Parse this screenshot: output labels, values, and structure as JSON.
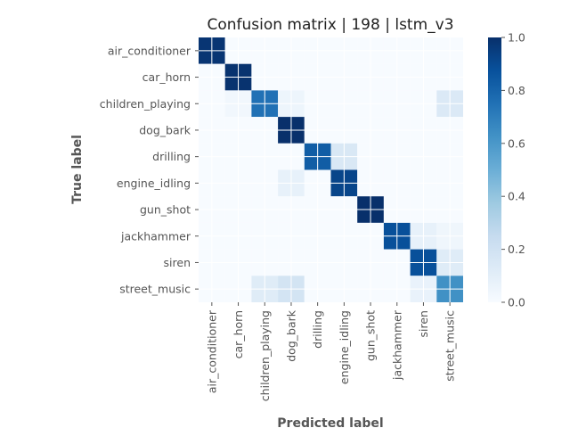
{
  "chart_data": {
    "type": "heatmap",
    "title": "Confusion matrix | 198 | lstm_v3",
    "xlabel": "Predicted label",
    "ylabel": "True label",
    "classes": [
      "air_conditioner",
      "car_horn",
      "children_playing",
      "dog_bark",
      "drilling",
      "engine_idling",
      "gun_shot",
      "jackhammer",
      "siren",
      "street_music"
    ],
    "matrix": [
      [
        0.98,
        0.0,
        0.0,
        0.0,
        0.0,
        0.0,
        0.0,
        0.0,
        0.0,
        0.0
      ],
      [
        0.0,
        0.99,
        0.0,
        0.0,
        0.0,
        0.0,
        0.0,
        0.0,
        0.0,
        0.0
      ],
      [
        0.0,
        0.03,
        0.75,
        0.05,
        0.0,
        0.0,
        0.0,
        0.0,
        0.0,
        0.14
      ],
      [
        0.0,
        0.0,
        0.0,
        1.0,
        0.0,
        0.0,
        0.0,
        0.0,
        0.0,
        0.0
      ],
      [
        0.0,
        0.0,
        0.0,
        0.0,
        0.83,
        0.15,
        0.0,
        0.0,
        0.0,
        0.0
      ],
      [
        0.0,
        0.0,
        0.0,
        0.08,
        0.0,
        0.92,
        0.0,
        0.0,
        0.0,
        0.0
      ],
      [
        0.0,
        0.0,
        0.0,
        0.0,
        0.0,
        0.0,
        1.0,
        0.0,
        0.0,
        0.0
      ],
      [
        0.0,
        0.0,
        0.0,
        0.0,
        0.0,
        0.0,
        0.0,
        0.88,
        0.08,
        0.04
      ],
      [
        0.0,
        0.0,
        0.0,
        0.0,
        0.0,
        0.0,
        0.0,
        0.0,
        0.88,
        0.12
      ],
      [
        0.0,
        0.0,
        0.12,
        0.18,
        0.0,
        0.0,
        0.0,
        0.0,
        0.07,
        0.63
      ]
    ],
    "colorbar": {
      "min": 0.0,
      "max": 1.0,
      "ticks": [
        "0.0",
        "0.2",
        "0.4",
        "0.6",
        "0.8",
        "1.0"
      ],
      "colormap": "Blues"
    }
  }
}
